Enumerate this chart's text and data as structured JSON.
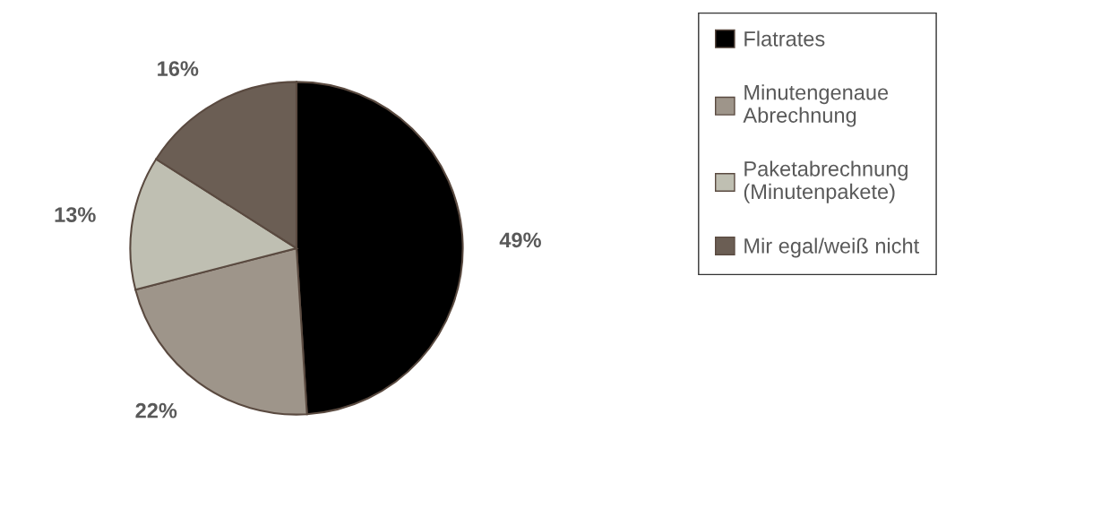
{
  "chart_data": {
    "type": "pie",
    "categories": [
      "Flatrates",
      "Minutengenaue\nAbrechnung",
      "Paketabrechnung\n(Minutenpakete)",
      "Mir egal/weiß nicht"
    ],
    "values": [
      49,
      22,
      13,
      16
    ],
    "value_labels": [
      "49%",
      "22%",
      "13%",
      "16%"
    ],
    "colors": [
      "#000000",
      "#9e958a",
      "#bfbfb2",
      "#6b5e54"
    ],
    "legend": "right"
  }
}
